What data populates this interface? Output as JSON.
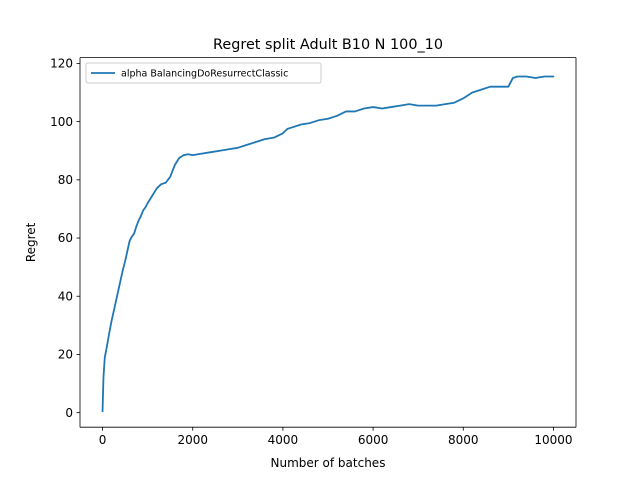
{
  "chart_data": {
    "type": "line",
    "title": "Regret split Adult B10 N 100_10",
    "xlabel": "Number of batches",
    "ylabel": "Regret",
    "xlim": [
      -500,
      10500
    ],
    "ylim": [
      -5,
      122
    ],
    "xticks": [
      0,
      2000,
      4000,
      6000,
      8000,
      10000
    ],
    "xtick_labels": [
      "0",
      "2000",
      "4000",
      "6000",
      "8000",
      "10000"
    ],
    "yticks": [
      0,
      20,
      40,
      60,
      80,
      100,
      120
    ],
    "ytick_labels": [
      "0",
      "20",
      "40",
      "60",
      "80",
      "100",
      "120"
    ],
    "grid": false,
    "legend_position": "top-left",
    "series": [
      {
        "name": "alpha BalancingDoResurrectClassic",
        "color": "#1f77b4",
        "x": [
          0,
          20,
          50,
          100,
          150,
          200,
          250,
          300,
          350,
          400,
          450,
          500,
          550,
          600,
          650,
          700,
          750,
          800,
          850,
          900,
          950,
          1000,
          1100,
          1200,
          1300,
          1400,
          1500,
          1600,
          1700,
          1800,
          1900,
          2000,
          2200,
          2400,
          2600,
          2800,
          3000,
          3200,
          3400,
          3600,
          3800,
          4000,
          4100,
          4200,
          4400,
          4600,
          4800,
          5000,
          5200,
          5400,
          5600,
          5800,
          6000,
          6200,
          6400,
          6600,
          6800,
          7000,
          7200,
          7400,
          7600,
          7800,
          8000,
          8200,
          8400,
          8600,
          8800,
          9000,
          9100,
          9200,
          9400,
          9600,
          9800,
          10000
        ],
        "values": [
          0.5,
          12,
          19,
          23,
          27.5,
          31.5,
          35,
          38.5,
          42,
          45.5,
          49,
          52,
          55.5,
          59,
          60.5,
          61.5,
          64,
          66,
          67.5,
          69.5,
          70.5,
          72,
          74.5,
          77,
          78.5,
          79,
          81,
          85,
          87.5,
          88.5,
          88.8,
          88.5,
          89,
          89.5,
          90,
          90.5,
          91,
          92,
          93,
          94,
          94.5,
          96,
          97.5,
          98,
          99,
          99.5,
          100.5,
          101,
          102,
          103.5,
          103.5,
          104.5,
          105,
          104.5,
          105,
          105.5,
          106,
          105.5,
          105.5,
          105.5,
          106,
          106.5,
          108,
          110,
          111,
          112,
          112,
          112,
          115,
          115.5,
          115.5,
          115,
          115.5,
          115.5
        ]
      }
    ]
  }
}
